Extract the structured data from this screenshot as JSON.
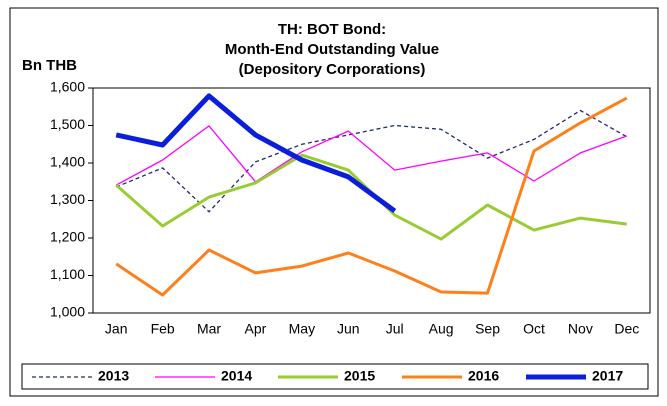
{
  "chart_data": {
    "type": "line",
    "title": [
      "TH: BOT Bond:",
      "Month-End Outstanding Value",
      "(Depository Corporations)"
    ],
    "ylabel": "Bn THB",
    "categories": [
      "Jan",
      "Feb",
      "Mar",
      "Apr",
      "May",
      "Jun",
      "Jul",
      "Aug",
      "Sep",
      "Oct",
      "Nov",
      "Dec"
    ],
    "ylim": [
      1000,
      1600
    ],
    "yticks": [
      {
        "value": 1000,
        "label": "1,000"
      },
      {
        "value": 1100,
        "label": "1,100"
      },
      {
        "value": 1200,
        "label": "1,200"
      },
      {
        "value": 1300,
        "label": "1,300"
      },
      {
        "value": 1400,
        "label": "1,400"
      },
      {
        "value": 1500,
        "label": "1,500"
      },
      {
        "value": 1600,
        "label": "1,600"
      }
    ],
    "legend": "bottom",
    "series": [
      {
        "name": "2013",
        "color": "#1f2a6e",
        "dashed": true,
        "width": 1.3,
        "values": [
          1336,
          1387,
          1270,
          1403,
          1450,
          1475,
          1500,
          1490,
          1413,
          1463,
          1540,
          1470
        ]
      },
      {
        "name": "2014",
        "color": "#ff00ff",
        "dashed": false,
        "width": 1.3,
        "values": [
          1341,
          1408,
          1499,
          1350,
          1430,
          1485,
          1381,
          1405,
          1427,
          1352,
          1427,
          1472
        ]
      },
      {
        "name": "2015",
        "color": "#99cc33",
        "dashed": false,
        "width": 3,
        "values": [
          1341,
          1232,
          1309,
          1347,
          1421,
          1381,
          1261,
          1197,
          1288,
          1221,
          1253,
          1237
        ]
      },
      {
        "name": "2016",
        "color": "#ff7f1a",
        "dashed": false,
        "width": 3,
        "values": [
          1131,
          1048,
          1168,
          1107,
          1125,
          1160,
          1112,
          1056,
          1053,
          1432,
          1507,
          1573
        ]
      },
      {
        "name": "2017",
        "color": "#0a1edc",
        "dashed": false,
        "width": 5,
        "values": [
          1475,
          1448,
          1579,
          1475,
          1408,
          1363,
          1272,
          null,
          null,
          null,
          null,
          null
        ]
      }
    ]
  }
}
